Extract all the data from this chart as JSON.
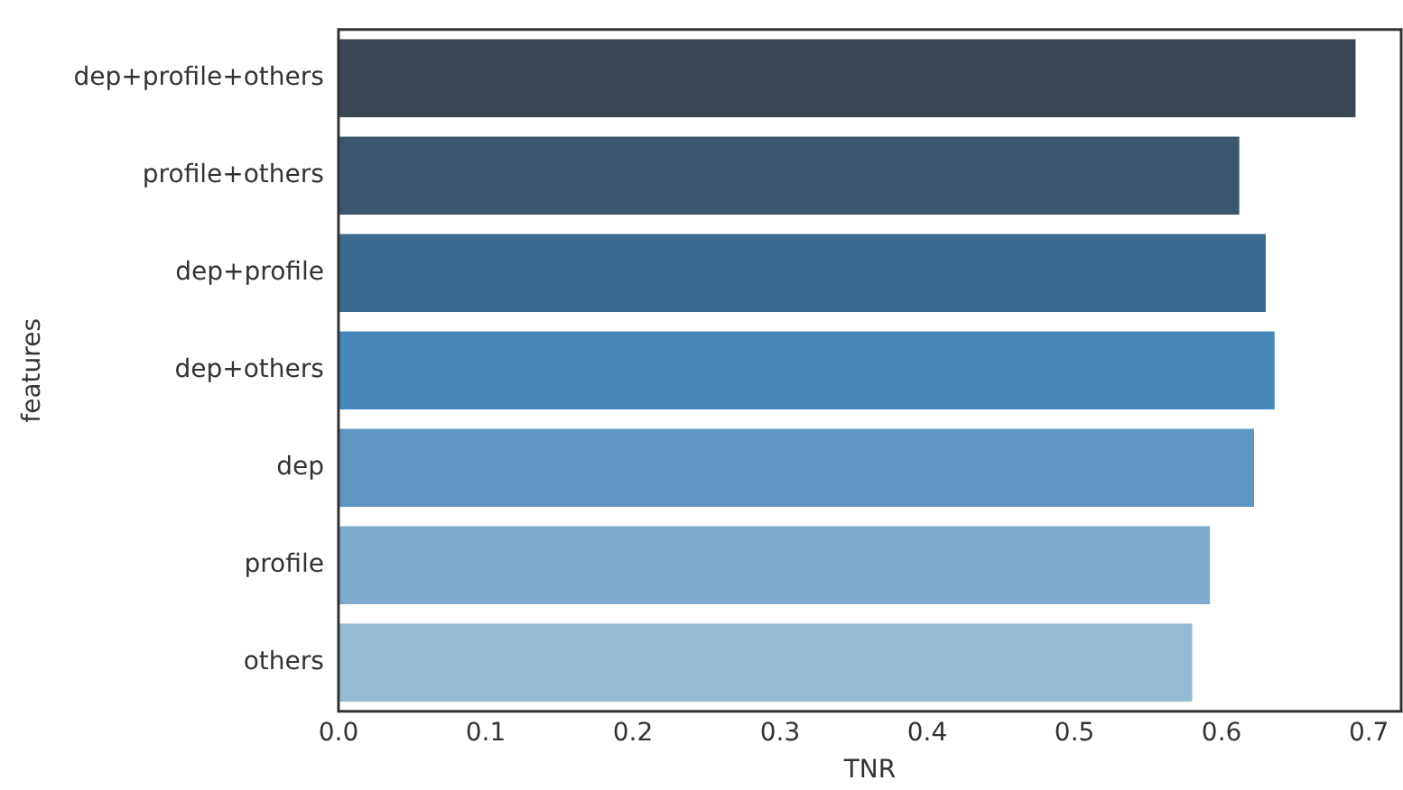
{
  "chart_data": {
    "type": "bar",
    "orientation": "horizontal",
    "xlabel": "TNR",
    "ylabel": "features",
    "categories": [
      "dep+profile+others",
      "profile+others",
      "dep+profile",
      "dep+others",
      "dep",
      "profile",
      "others"
    ],
    "values": [
      0.691,
      0.612,
      0.63,
      0.636,
      0.622,
      0.592,
      0.58
    ],
    "colors": [
      "#3a4753",
      "#3b576f",
      "#3d6b90",
      "#4587b8",
      "#5f97c3",
      "#7eaacb",
      "#95bad4"
    ],
    "xlim": [
      0,
      0.722
    ],
    "xticks": [
      {
        "value": 0,
        "label": "0.0"
      },
      0.1,
      0.2,
      0.3,
      0.4,
      0.5,
      0.6,
      0.7
    ],
    "grid": false,
    "legend": false
  }
}
